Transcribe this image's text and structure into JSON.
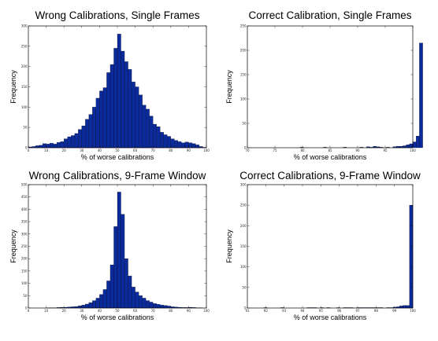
{
  "chart_data": [
    {
      "type": "bar",
      "title": "Wrong Calibrations, Single Frames",
      "xlabel": "% of worse calibrations",
      "ylabel": "Frequency",
      "xlim": [
        0,
        100
      ],
      "ylim": [
        0,
        300
      ],
      "xticks": [
        "0",
        "10",
        "20",
        "30",
        "40",
        "50",
        "60",
        "70",
        "80",
        "90",
        "100"
      ],
      "yticks": [
        "0",
        "50",
        "100",
        "150",
        "200",
        "250",
        "300"
      ],
      "bin_start": 0,
      "bin_width": 2,
      "values": [
        2,
        3,
        5,
        6,
        10,
        9,
        11,
        9,
        13,
        15,
        22,
        27,
        30,
        35,
        45,
        54,
        70,
        82,
        100,
        122,
        140,
        148,
        185,
        205,
        245,
        280,
        238,
        212,
        193,
        162,
        150,
        130,
        105,
        95,
        78,
        58,
        52,
        38,
        32,
        28,
        22,
        18,
        15,
        12,
        14,
        12,
        10,
        7,
        3,
        1
      ],
      "grid": false
    },
    {
      "type": "bar",
      "title": "Correct Calibration, Single Frames",
      "xlabel": "% of worse calibrations",
      "ylabel": "Frequency",
      "xlim": [
        70,
        100
      ],
      "ylim": [
        0,
        250
      ],
      "xticks": [
        "70",
        "75",
        "80",
        "85",
        "90",
        "95",
        "100"
      ],
      "yticks": [
        "0",
        "50",
        "100",
        "150",
        "200",
        "250"
      ],
      "bin_start": 70,
      "bin_width": 0.6,
      "values": [
        0,
        0,
        0,
        0,
        0,
        0,
        0,
        0,
        0,
        0,
        0,
        0,
        0,
        0,
        0,
        0,
        1,
        0,
        0,
        0,
        0,
        0,
        0,
        1,
        0,
        0,
        0,
        0,
        0,
        1,
        0,
        0,
        0,
        0,
        1,
        0,
        2,
        1,
        3,
        2,
        1,
        0,
        1,
        0,
        2,
        3,
        3,
        4,
        6,
        8,
        12,
        24,
        215
      ],
      "grid": false
    },
    {
      "type": "bar",
      "title": "Wrong Calibrations, 9-Frame Window",
      "xlabel": "% of worse calibrations",
      "ylabel": "Frequency",
      "xlim": [
        0,
        100
      ],
      "ylim": [
        0,
        500
      ],
      "xticks": [
        "0",
        "10",
        "20",
        "30",
        "40",
        "50",
        "60",
        "70",
        "80",
        "90",
        "100"
      ],
      "yticks": [
        "0",
        "50",
        "100",
        "150",
        "200",
        "250",
        "300",
        "350",
        "400",
        "450",
        "500"
      ],
      "bin_start": 0,
      "bin_width": 2,
      "values": [
        0,
        0,
        0,
        0,
        0,
        1,
        1,
        1,
        2,
        3,
        3,
        4,
        5,
        6,
        9,
        12,
        16,
        22,
        30,
        40,
        55,
        75,
        110,
        175,
        330,
        470,
        380,
        200,
        130,
        85,
        65,
        50,
        40,
        30,
        24,
        18,
        15,
        12,
        10,
        8,
        5,
        4,
        3,
        2,
        2,
        3,
        2,
        1,
        1,
        0
      ],
      "grid": false
    },
    {
      "type": "bar",
      "title": "Correct Calibrations, 9-Frame Window",
      "xlabel": "% of worse calibrations",
      "ylabel": "Frequency",
      "xlim": [
        91,
        100
      ],
      "ylim": [
        0,
        300
      ],
      "xticks": [
        "91",
        "92",
        "93",
        "94",
        "95",
        "96",
        "97",
        "98",
        "99",
        "100"
      ],
      "yticks": [
        "0",
        "50",
        "100",
        "150",
        "200",
        "250",
        "300"
      ],
      "bin_start": 91,
      "bin_width": 0.18,
      "values": [
        0,
        0,
        0,
        0,
        0,
        1,
        0,
        0,
        0,
        0,
        1,
        0,
        0,
        0,
        0,
        0,
        0,
        0,
        1,
        1,
        1,
        0,
        1,
        0,
        1,
        0,
        0,
        1,
        0,
        1,
        1,
        1,
        0,
        1,
        1,
        1,
        1,
        1,
        1,
        1,
        1,
        0,
        1,
        1,
        2,
        3,
        5,
        6,
        6,
        250
      ],
      "grid": false
    }
  ]
}
